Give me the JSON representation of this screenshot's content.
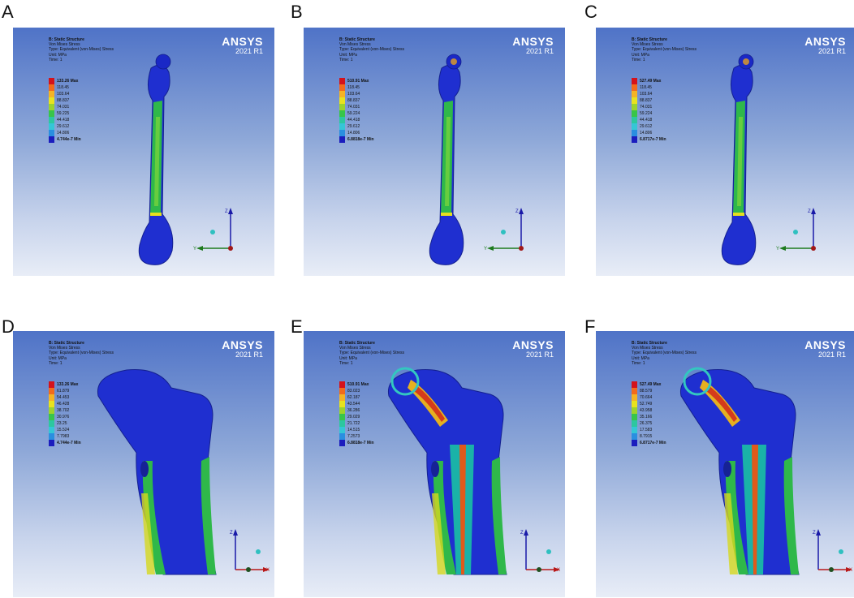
{
  "panels": [
    {
      "letter": "A",
      "header": [
        "B: Static Structure",
        "Von Mises Stress",
        "Type: Equivalent (von-Mises) Stress",
        "Unit: MPa",
        "Time: 1"
      ],
      "logo": "ANSYS",
      "version": "2021 R1",
      "legend": [
        "133.26 Max",
        "118.45",
        "103.64",
        "88.837",
        "74.031",
        "59.225",
        "44.418",
        "29.612",
        "14.806",
        "4.744e-7 Min"
      ],
      "axes": [
        "Z",
        "Y"
      ]
    },
    {
      "letter": "B",
      "header": [
        "B: Static Structure",
        "Von Mises Stress",
        "Type: Equivalent (von-Mises) Stress",
        "Unit: MPa",
        "Time: 1"
      ],
      "logo": "ANSYS",
      "version": "2021 R1",
      "legend": [
        "510.91 Max",
        "118.45",
        "103.64",
        "88.837",
        "74.031",
        "59.224",
        "44.418",
        "29.612",
        "14.806",
        "6.8818e-7 Min"
      ],
      "axes": [
        "Z",
        "Y"
      ]
    },
    {
      "letter": "C",
      "header": [
        "B: Static Structure",
        "Von Mises Stress",
        "Type: Equivalent (von-Mises) Stress",
        "Unit: MPa",
        "Time: 1"
      ],
      "logo": "ANSYS",
      "version": "2021 R1",
      "legend": [
        "527.49 Max",
        "118.45",
        "103.64",
        "88.837",
        "74.031",
        "59.224",
        "44.418",
        "29.612",
        "14.806",
        "6.8717e-7 Min"
      ],
      "axes": [
        "Z",
        "Y"
      ]
    },
    {
      "letter": "D",
      "header": [
        "B: Static Structure",
        "Von Mises Stress",
        "Type: Equivalent (von-Mises) Stress",
        "Unit: MPa",
        "Time: 1"
      ],
      "logo": "ANSYS",
      "version": "2021 R1",
      "legend": [
        "133.26 Max",
        "61.879",
        "54.453",
        "46.428",
        "38.702",
        "30.976",
        "23.25",
        "15.524",
        "7.7983",
        "4.744e-7 Min"
      ],
      "axes": [
        "Z",
        "X"
      ]
    },
    {
      "letter": "E",
      "header": [
        "B: Static Structure",
        "Von Mises Stress",
        "Type: Equivalent (von-Mises) Stress",
        "Unit: MPa",
        "Time: 1"
      ],
      "logo": "ANSYS",
      "version": "2021 R1",
      "legend": [
        "510.91 Max",
        "83.023",
        "62.187",
        "43.544",
        "36.286",
        "29.029",
        "21.722",
        "14.515",
        "7.2573",
        "6.8818e-7 Min"
      ],
      "axes": [
        "Z",
        "X"
      ]
    },
    {
      "letter": "F",
      "header": [
        "B: Static Structure",
        "Von Mises Stress",
        "Type: Equivalent (von-Mises) Stress",
        "Unit: MPa",
        "Time: 1"
      ],
      "logo": "ANSYS",
      "version": "2021 R1",
      "legend": [
        "527.49 Max",
        "88.579",
        "70.664",
        "52.749",
        "43.958",
        "35.166",
        "26.375",
        "17.583",
        "8.7915",
        "6.8717e-7 Min"
      ],
      "axes": [
        "Z",
        "X"
      ]
    }
  ],
  "legend_colors": [
    "#d4121c",
    "#f26b1d",
    "#f5b324",
    "#e8e21e",
    "#9dd32b",
    "#38c54a",
    "#2dc7a0",
    "#35c6d6",
    "#2a8fe0",
    "#1b1dbe"
  ]
}
